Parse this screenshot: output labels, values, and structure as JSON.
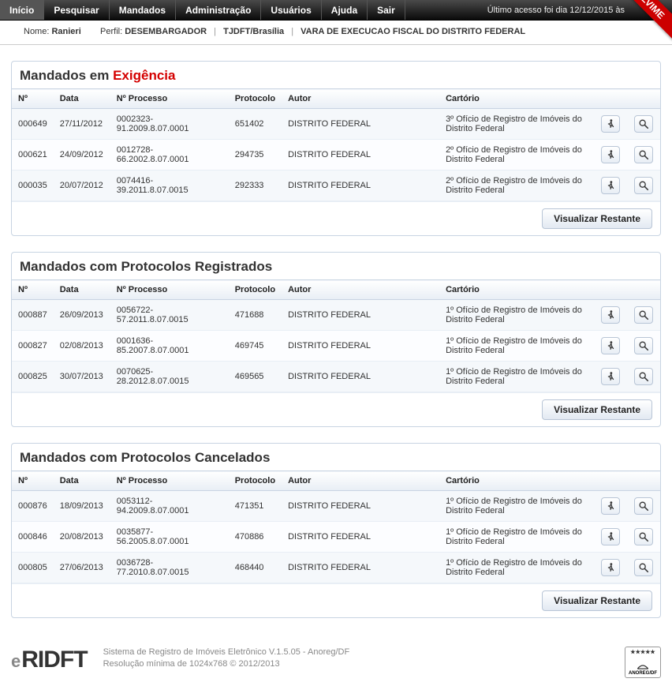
{
  "nav": {
    "items": [
      "Início",
      "Pesquisar",
      "Mandados",
      "Administração",
      "Usuários",
      "Ajuda",
      "Sair"
    ],
    "last_access": "Último acesso foi dia 12/12/2015 às",
    "ribbon": "LVIME"
  },
  "userbar": {
    "nome_label": "Nome:",
    "nome": "Ranieri",
    "perfil_label": "Perfil:",
    "perfil": "DESEMBARGADOR",
    "loc1": "TJDFT/Brasília",
    "loc2": "VARA DE EXECUCAO FISCAL DO DISTRITO FEDERAL"
  },
  "columns": {
    "num": "Nº",
    "data": "Data",
    "processo": "Nº Processo",
    "protocolo": "Protocolo",
    "autor": "Autor",
    "cartorio": "Cartório"
  },
  "buttons": {
    "visualizar_restante": "Visualizar Restante"
  },
  "sections": [
    {
      "title_pre": "Mandados em ",
      "title_red": "Exigência",
      "rows": [
        {
          "num": "000649",
          "data": "27/11/2012",
          "proc": "0002323-91.2009.8.07.0001",
          "prot": "651402",
          "autor": "DISTRITO FEDERAL",
          "cart": "3º Ofício de Registro de Imóveis do Distrito Federal"
        },
        {
          "num": "000621",
          "data": "24/09/2012",
          "proc": "0012728-66.2002.8.07.0001",
          "prot": "294735",
          "autor": "DISTRITO FEDERAL",
          "cart": "2º Ofício de Registro de Imóveis do Distrito Federal"
        },
        {
          "num": "000035",
          "data": "20/07/2012",
          "proc": "0074416-39.2011.8.07.0015",
          "prot": "292333",
          "autor": "DISTRITO FEDERAL",
          "cart": "2º Ofício de Registro de Imóveis do Distrito Federal"
        }
      ]
    },
    {
      "title_pre": "Mandados com Protocolos Registrados",
      "title_red": "",
      "rows": [
        {
          "num": "000887",
          "data": "26/09/2013",
          "proc": "0056722-57.2011.8.07.0015",
          "prot": "471688",
          "autor": "DISTRITO FEDERAL",
          "cart": "1º Ofício de Registro de Imóveis do Distrito Federal"
        },
        {
          "num": "000827",
          "data": "02/08/2013",
          "proc": "0001636-85.2007.8.07.0001",
          "prot": "469745",
          "autor": "DISTRITO FEDERAL",
          "cart": "1º Ofício de Registro de Imóveis do Distrito Federal"
        },
        {
          "num": "000825",
          "data": "30/07/2013",
          "proc": "0070625-28.2012.8.07.0015",
          "prot": "469565",
          "autor": "DISTRITO FEDERAL",
          "cart": "1º Ofício de Registro de Imóveis do Distrito Federal"
        }
      ]
    },
    {
      "title_pre": "Mandados com Protocolos Cancelados",
      "title_red": "",
      "rows": [
        {
          "num": "000876",
          "data": "18/09/2013",
          "proc": "0053112-94.2009.8.07.0001",
          "prot": "471351",
          "autor": "DISTRITO FEDERAL",
          "cart": "1º Ofício de Registro de Imóveis do Distrito Federal"
        },
        {
          "num": "000846",
          "data": "20/08/2013",
          "proc": "0035877-56.2005.8.07.0001",
          "prot": "470886",
          "autor": "DISTRITO FEDERAL",
          "cart": "1º Ofício de Registro de Imóveis do Distrito Federal"
        },
        {
          "num": "000805",
          "data": "27/06/2013",
          "proc": "0036728-77.2010.8.07.0015",
          "prot": "468440",
          "autor": "DISTRITO FEDERAL",
          "cart": "1º Ofício de Registro de Imóveis do Distrito Federal"
        }
      ]
    }
  ],
  "footer": {
    "logo_e": "e",
    "logo_main": "RIDFT",
    "line1": "Sistema de Registro de Imóveis Eletrônico V.1.5.05 - Anoreg/DF",
    "line2": "Resolução mínima de 1024x768 © 2012/2013",
    "badge": "ANOREG/DF"
  }
}
